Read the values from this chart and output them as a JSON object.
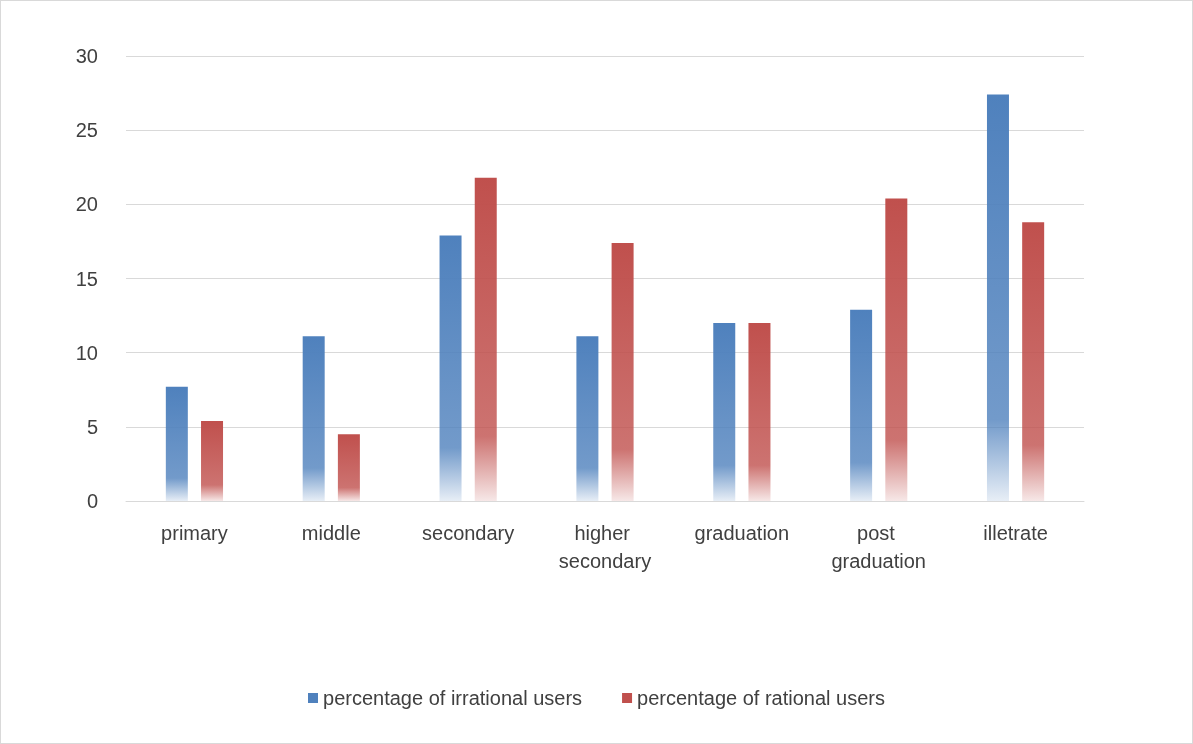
{
  "chart_data": {
    "type": "bar",
    "categories": [
      "primary",
      "middle",
      "secondary",
      "higher secondary",
      "graduation",
      "post graduation",
      "illetrate"
    ],
    "series": [
      {
        "name": "percentage of irrational users",
        "color": "#4f81bd",
        "values": [
          7.7,
          11.1,
          17.9,
          11.1,
          12.0,
          12.9,
          27.4
        ]
      },
      {
        "name": "percentage of rational users",
        "color": "#c0504d",
        "values": [
          5.4,
          4.5,
          21.8,
          17.4,
          12.0,
          20.4,
          18.8
        ]
      }
    ],
    "ylim": [
      0,
      30
    ],
    "yticks": [
      0,
      5,
      10,
      15,
      20,
      25,
      30
    ],
    "grid": "y",
    "legend": "bottom"
  }
}
